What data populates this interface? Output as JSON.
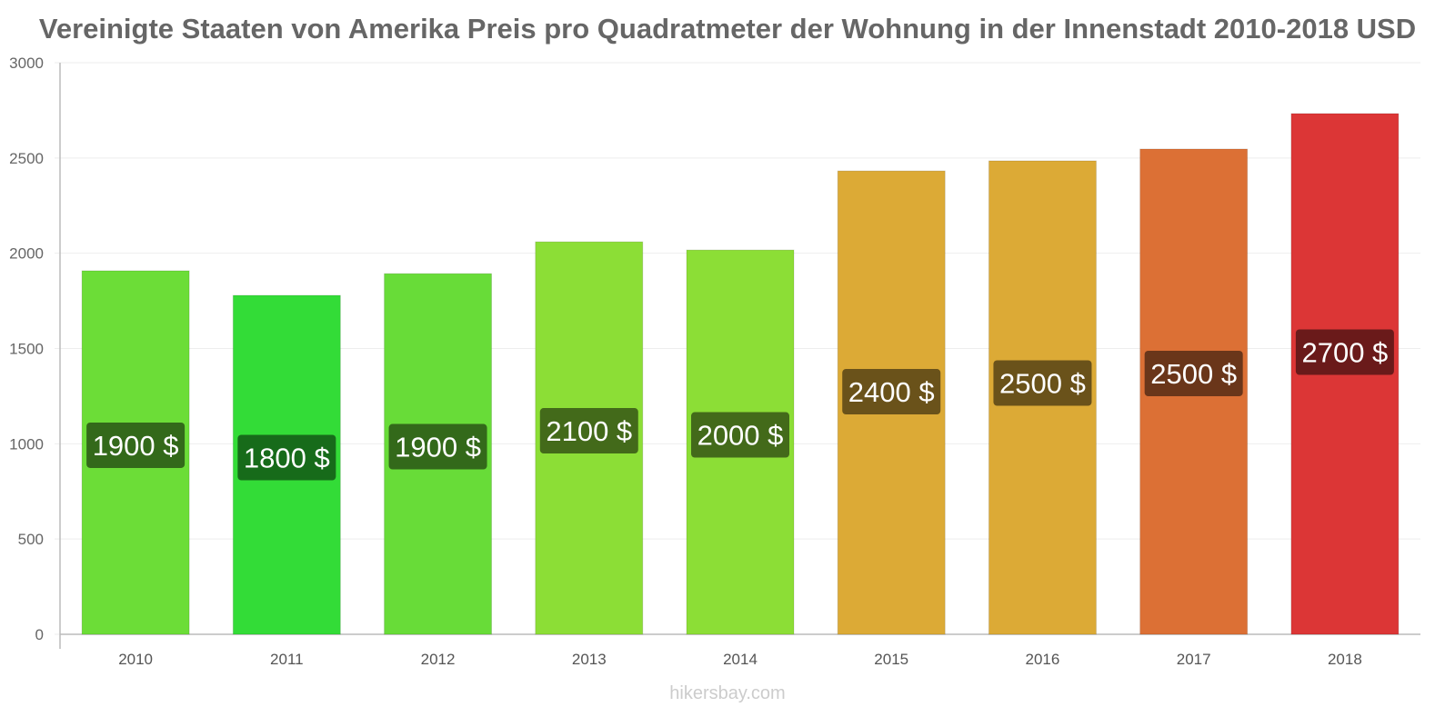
{
  "chart_data": {
    "type": "bar",
    "title": "Vereinigte Staaten von Amerika Preis pro Quadratmeter der Wohnung in der Innenstadt 2010-2018 USD",
    "xlabel": "",
    "ylabel": "",
    "ylim": [
      0,
      3000
    ],
    "yticks": [
      "0",
      "500",
      "1000",
      "1500",
      "2000",
      "2500",
      "3000"
    ],
    "grid": true,
    "categories": [
      "2010",
      "2011",
      "2012",
      "2013",
      "2014",
      "2015",
      "2016",
      "2017",
      "2018"
    ],
    "values": [
      1908,
      1779,
      1893,
      2060,
      2017,
      2432,
      2485,
      2547,
      2733
    ],
    "data_labels": [
      "1900 $",
      "1800 $",
      "1900 $",
      "2100 $",
      "2000 $",
      "2400 $",
      "2500 $",
      "2500 $",
      "2700 $"
    ],
    "bar_colors": [
      "#6cdd37",
      "#33dc37",
      "#68dc38",
      "#8cde36",
      "#8cde36",
      "#dcaa36",
      "#dcaa36",
      "#dc7035",
      "#dc3636"
    ],
    "label_colors": [
      "#33691a",
      "#176b1a",
      "#33691a",
      "#436a1a",
      "#436a1a",
      "#6a521a",
      "#6a521a",
      "#6a361a",
      "#6a1a1a"
    ]
  },
  "footer": "hikersbay.com"
}
